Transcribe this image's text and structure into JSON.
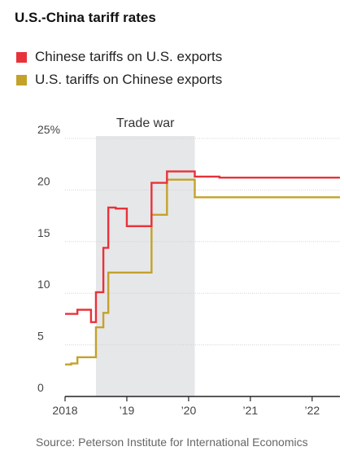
{
  "title": "U.S.-China tariff rates",
  "source": "Source: Peterson Institute for International Economics",
  "chart_data": {
    "type": "line",
    "step": true,
    "ylim": [
      0,
      25
    ],
    "xlim": [
      2018,
      2022.45
    ],
    "y_ticks": [
      {
        "value": 25,
        "label": "25%"
      },
      {
        "value": 20,
        "label": "20"
      },
      {
        "value": 15,
        "label": "15"
      },
      {
        "value": 10,
        "label": "10"
      },
      {
        "value": 5,
        "label": "5"
      },
      {
        "value": 0,
        "label": "0"
      }
    ],
    "x_ticks": [
      {
        "value": 2018,
        "label": "2018"
      },
      {
        "value": 2019,
        "label": "’19"
      },
      {
        "value": 2020,
        "label": "’20"
      },
      {
        "value": 2021,
        "label": "’21"
      },
      {
        "value": 2022,
        "label": "’22"
      }
    ],
    "shaded_region": {
      "label": "Trade war",
      "x_start": 2018.5,
      "x_end": 2020.1,
      "color": "#e6e7e9"
    },
    "grid": true,
    "legend_position": "top-left",
    "series": [
      {
        "name": "Chinese tariffs on U.S. exports",
        "color": "#e8323a",
        "points": [
          [
            2018.0,
            8.0
          ],
          [
            2018.2,
            8.4
          ],
          [
            2018.42,
            7.2
          ],
          [
            2018.5,
            10.1
          ],
          [
            2018.62,
            14.4
          ],
          [
            2018.7,
            18.3
          ],
          [
            2018.82,
            18.2
          ],
          [
            2019.0,
            16.5
          ],
          [
            2019.4,
            20.7
          ],
          [
            2019.65,
            21.8
          ],
          [
            2020.1,
            21.3
          ],
          [
            2020.5,
            21.2
          ],
          [
            2022.45,
            21.2
          ]
        ]
      },
      {
        "name": "U.S. tariffs on Chinese exports",
        "color": "#c4a22a",
        "points": [
          [
            2018.0,
            3.1
          ],
          [
            2018.1,
            3.2
          ],
          [
            2018.2,
            3.8
          ],
          [
            2018.5,
            6.7
          ],
          [
            2018.62,
            8.1
          ],
          [
            2018.7,
            12.0
          ],
          [
            2019.4,
            17.6
          ],
          [
            2019.65,
            21.0
          ],
          [
            2020.1,
            19.3
          ],
          [
            2022.45,
            19.3
          ]
        ]
      }
    ]
  }
}
